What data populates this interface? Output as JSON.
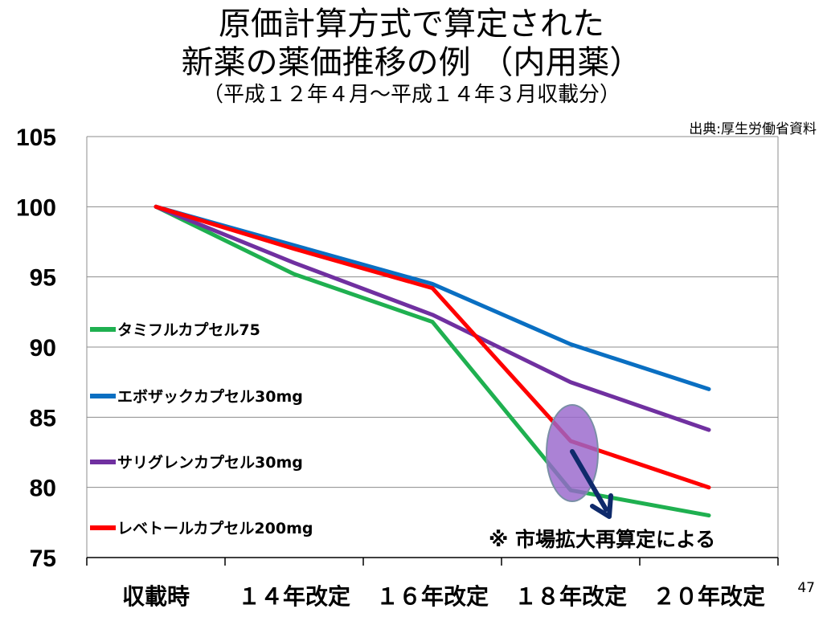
{
  "header": {
    "title_line1": "原価計算方式で算定された",
    "title_line2": "新薬の薬価推移の例 （内用薬）",
    "subtitle": "（平成１２年４月～平成１４年３月収載分）"
  },
  "source_text": "出典:厚生労働省資料",
  "slide_number": "47",
  "note_text": "※ 市場拡大再算定による",
  "colors": {
    "green": "#1fb050",
    "blue": "#0a6fc2",
    "purple": "#7030a0",
    "red": "#ff0000",
    "highlight_fill": "#9966cc",
    "arrow": "#0f2a6b",
    "grid": "#8c8c8c"
  },
  "chart_data": {
    "type": "line",
    "categories": [
      "収載時",
      "１４年改定",
      "１６年改定",
      "１８年改定",
      "２０年改定"
    ],
    "y_ticks": [
      "105",
      "100",
      "95",
      "90",
      "85",
      "80",
      "75"
    ],
    "ylim": [
      75,
      105
    ],
    "grid": "horizontal",
    "legend_position": "left-inside",
    "series": [
      {
        "name": "タミフルカプセル75",
        "color": "#1fb050",
        "x": [
          0.5,
          1.5,
          2.5,
          3.5,
          4.5
        ],
        "values": [
          100,
          95.2,
          91.8,
          79.8,
          78.0
        ]
      },
      {
        "name": "エボザックカプセル30mg",
        "color": "#0a6fc2",
        "x": [
          0.5,
          2.5,
          3.5,
          4.5
        ],
        "values": [
          100,
          94.5,
          90.2,
          87.0
        ]
      },
      {
        "name": "サリグレンカプセル30mg",
        "color": "#7030a0",
        "x": [
          0.5,
          1.5,
          2.5,
          3.5,
          4.5
        ],
        "values": [
          100,
          96.0,
          92.3,
          87.5,
          84.1
        ]
      },
      {
        "name": "レベトールカプセル200mg",
        "color": "#ff0000",
        "x": [
          0.5,
          1.5,
          2.5,
          3.5,
          4.5
        ],
        "values": [
          100,
          97.0,
          94.2,
          83.3,
          80.0
        ]
      }
    ]
  }
}
